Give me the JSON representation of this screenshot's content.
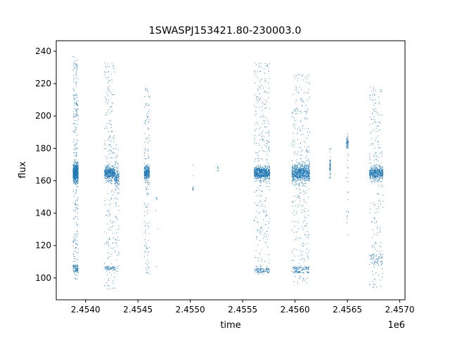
{
  "chart_data": {
    "type": "scatter",
    "title": "1SWASPJ153421.80-230003.0",
    "xlabel": "time",
    "ylabel": "flux",
    "x_offset_label": "1e6",
    "xlim": [
      2.45372,
      2.45705
    ],
    "ylim": [
      86.5,
      246.5
    ],
    "x_ticks": [
      2.454,
      2.4545,
      2.455,
      2.4555,
      2.456,
      2.4565,
      2.457
    ],
    "x_tick_labels": [
      "2.4540",
      "2.4545",
      "2.4550",
      "2.4555",
      "2.4560",
      "2.4565",
      "2.4570"
    ],
    "y_ticks": [
      100,
      120,
      140,
      160,
      180,
      200,
      220,
      240
    ],
    "y_tick_labels": [
      "100",
      "120",
      "140",
      "160",
      "180",
      "200",
      "220",
      "240"
    ],
    "grid": false,
    "legend": false,
    "series": [
      {
        "color": "#1f77b4",
        "clusters": [
          {
            "x": [
              2.45388,
              2.45393
            ],
            "center": 165,
            "spread": 4,
            "min": 98,
            "max": 237,
            "count": 900,
            "low_band": [
              104,
              108
            ]
          },
          {
            "x": [
              2.45418,
              2.45428
            ],
            "center": 165,
            "spread": 3,
            "min": 93,
            "max": 233,
            "count": 700,
            "low_band": [
              105,
              107
            ]
          },
          {
            "x": [
              2.45428,
              2.45432
            ],
            "center": 162,
            "spread": 4,
            "min": 104,
            "max": 185,
            "count": 180
          },
          {
            "x": [
              2.45456,
              2.45461
            ],
            "center": 165,
            "spread": 3,
            "min": 100,
            "max": 217,
            "count": 400
          },
          {
            "x": [
              2.45467,
              2.45469
            ],
            "center": 149,
            "spread": 1,
            "min": 105,
            "max": 150,
            "count": 8
          },
          {
            "x": [
              2.45502,
              2.45503
            ],
            "center": 155,
            "spread": 1,
            "min": 153,
            "max": 171,
            "count": 10
          },
          {
            "x": [
              2.45526,
              2.45527
            ],
            "center": 168,
            "spread": 1,
            "min": 166,
            "max": 169,
            "count": 8
          },
          {
            "x": [
              2.45561,
              2.45576
            ],
            "center": 165,
            "spread": 3,
            "min": 102,
            "max": 233,
            "count": 1000,
            "low_band": [
              103,
              106
            ]
          },
          {
            "x": [
              2.45597,
              2.45614
            ],
            "center": 165,
            "spread": 4,
            "min": 96,
            "max": 226,
            "count": 1100,
            "low_band": [
              103,
              107
            ]
          },
          {
            "x": [
              2.45633,
              2.45634
            ],
            "center": 170,
            "spread": 4,
            "min": 161,
            "max": 182,
            "count": 60
          },
          {
            "x": [
              2.45649,
              2.45651
            ],
            "center": 183,
            "spread": 3,
            "min": 125,
            "max": 189,
            "count": 80
          },
          {
            "x": [
              2.45671,
              2.45684
            ],
            "center": 165,
            "spread": 3,
            "min": 94,
            "max": 218,
            "count": 700,
            "low_band": [
              108,
              115
            ]
          }
        ]
      }
    ]
  }
}
